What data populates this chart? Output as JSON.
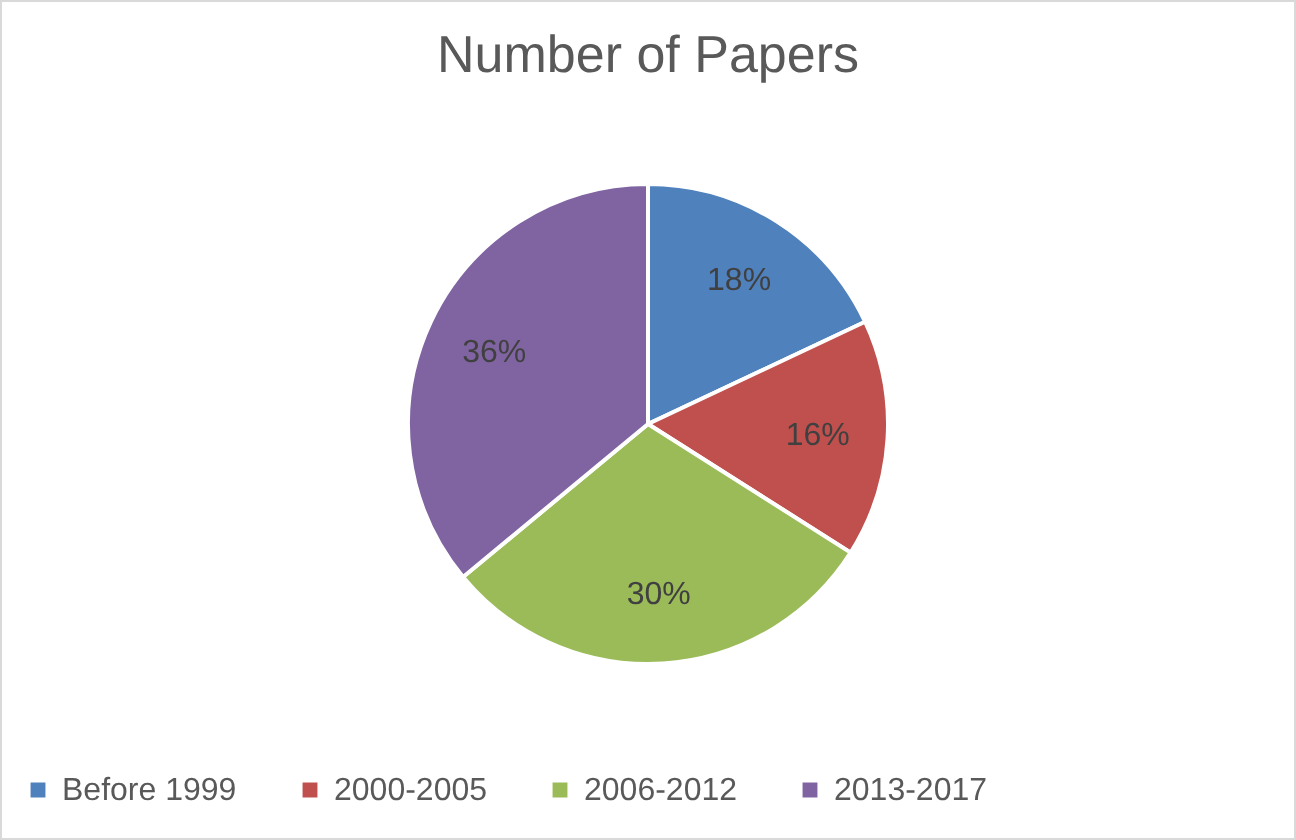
{
  "chart_data": {
    "type": "pie",
    "title": "Number of Papers",
    "categories": [
      "Before 1999",
      "2000-2005",
      "2006-2012",
      "2013-2017"
    ],
    "values": [
      18,
      16,
      30,
      36
    ],
    "value_labels": [
      "18%",
      "16%",
      "30%",
      "36%"
    ],
    "colors": [
      "#4f81bd",
      "#c0504d",
      "#9bbb59",
      "#8064a2"
    ],
    "legend": "bottom"
  }
}
